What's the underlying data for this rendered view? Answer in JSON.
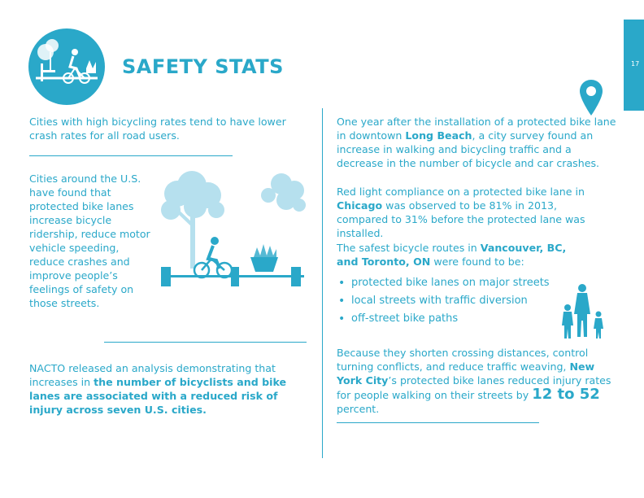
{
  "header": {
    "title": "SAFETY STATS"
  },
  "page_number": "17",
  "left": {
    "intro": "Cities with high bicycling rates tend to have lower crash rates for all road users.",
    "cities_text": "Cities around the U.S. have found that protected bike lanes increase bicycle ridership, reduce motor vehicle speeding, reduce crashes and improve people’s feelings of safety on those streets.",
    "nacto_pre": "NACTO released an analysis demonstrating that increases in ",
    "nacto_bold": "the number of bicyclists and bike lanes are associated with a reduced risk of injury across seven U.S. cities."
  },
  "right": {
    "lb_pre": "One year after the installation of a protected bike lane in downtown ",
    "lb_city": "Long Beach",
    "lb_post": ", a city survey found an increase in walking and bicycling traffic and a decrease in the number of bicycle and car crashes.",
    "chi_pre": "Red light compliance on a protected bike lane in ",
    "chi_city": "Chicago",
    "chi_post": " was observed to be 81% in 2013, compared to 31% before the protected lane was installed.",
    "van_pre": "The safest bicycle routes in ",
    "van_city": "Vancouver, BC, and Toronto, ON",
    "van_post": " were found to be:",
    "bullets": [
      "protected bike lanes on major streets",
      "local streets with traffic diversion",
      "off-street bike paths"
    ],
    "ny_pre": "Because they shorten crossing distances, control turning conflicts, and reduce traffic weaving, ",
    "ny_city": "New York City",
    "ny_mid": "’s protected bike lanes reduced injury rates for people walking on their streets by ",
    "ny_big": "12 to 52",
    "ny_post": " percent."
  },
  "colors": {
    "accent": "#2aa8c9",
    "light": "#b6e0ee"
  },
  "icons": [
    "bike-badge-icon",
    "bike-lane-illustration",
    "map-pin-icon",
    "family-icon"
  ]
}
